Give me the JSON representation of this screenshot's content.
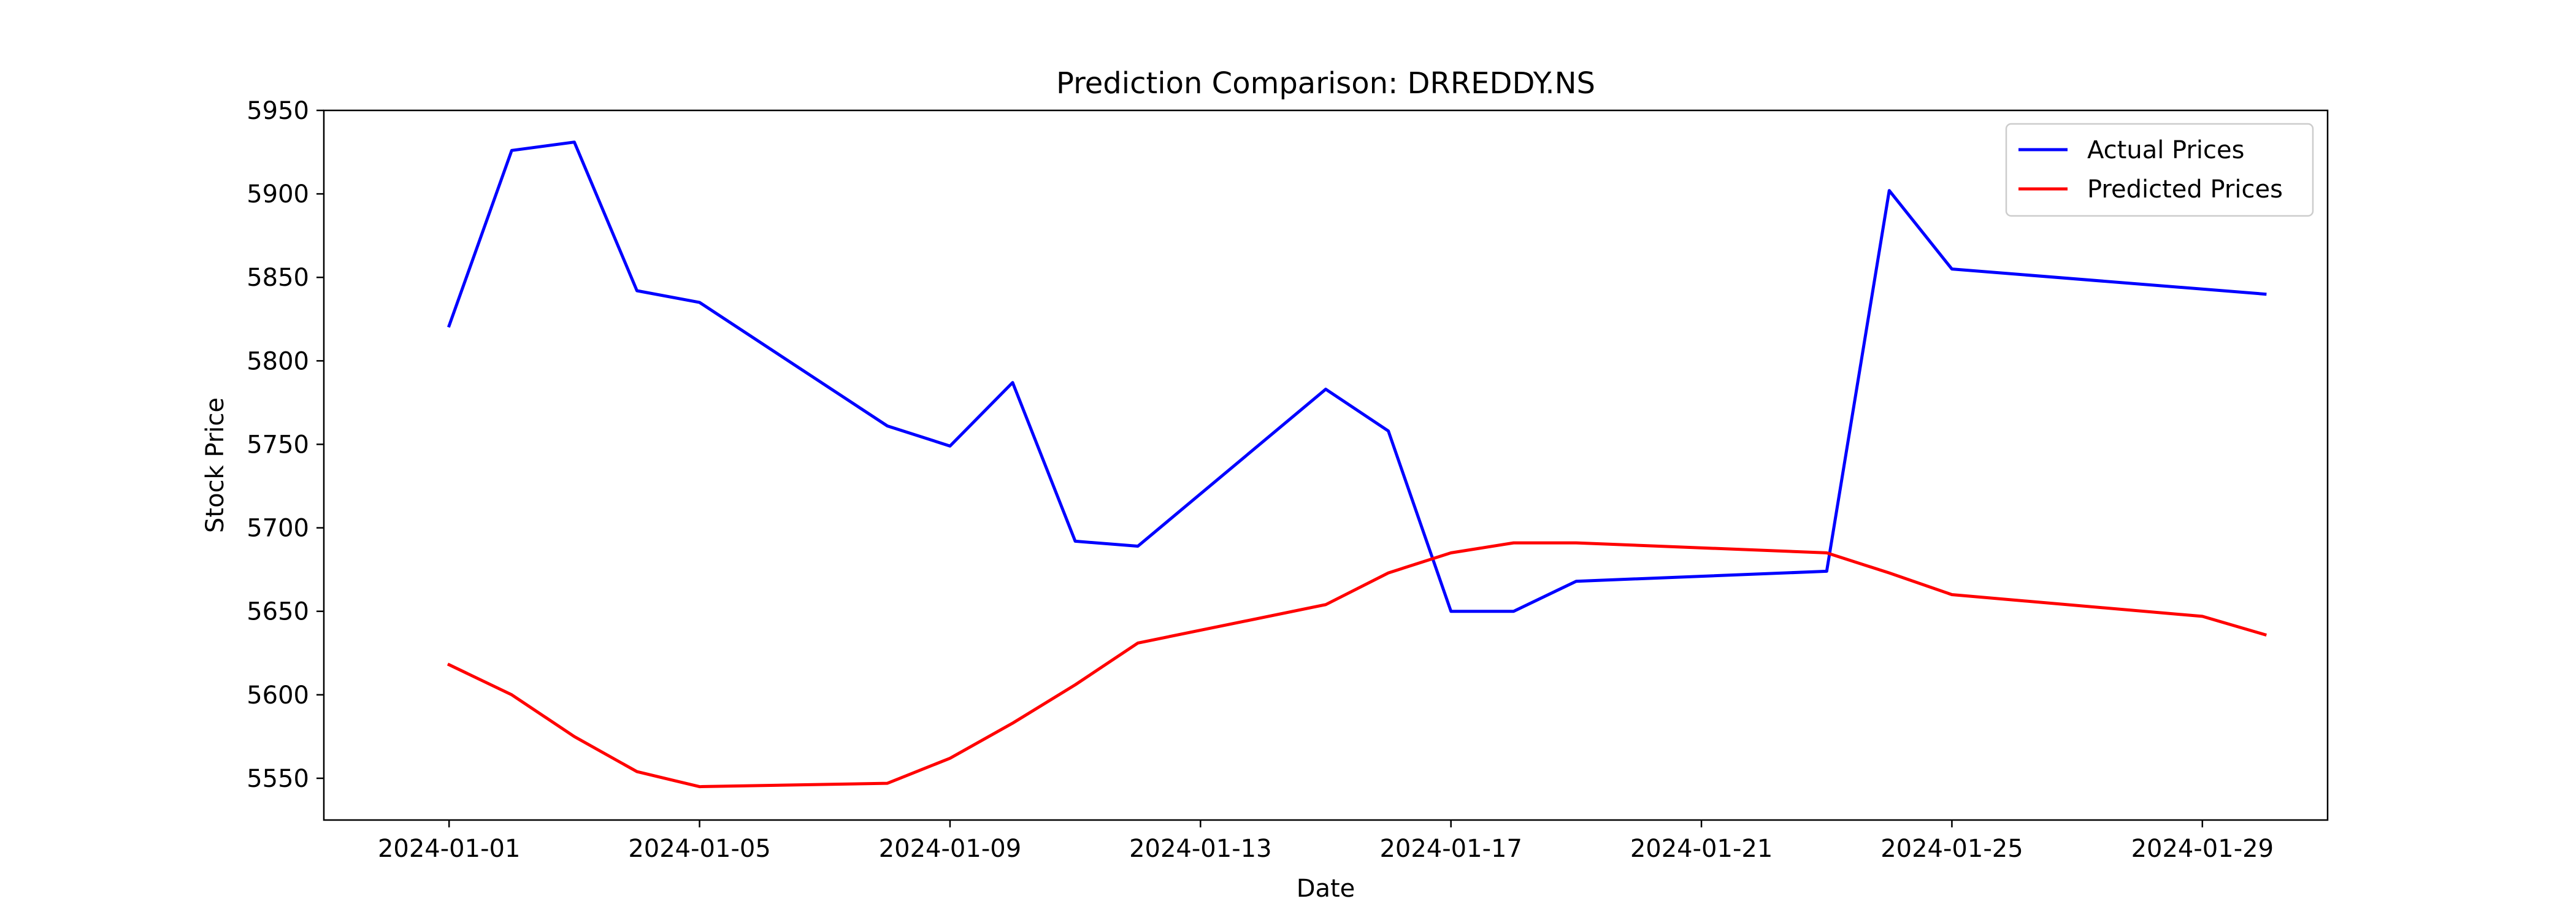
{
  "chart_data": {
    "type": "line",
    "title": "Prediction Comparison: DRREDDY.NS",
    "xlabel": "Date",
    "ylabel": "Stock Price",
    "ylim": [
      5525,
      5950
    ],
    "xlim": [
      "2023-12-30",
      "2024-01-31"
    ],
    "x_ticks": [
      "2024-01-01",
      "2024-01-05",
      "2024-01-09",
      "2024-01-13",
      "2024-01-17",
      "2024-01-21",
      "2024-01-25",
      "2024-01-29"
    ],
    "y_ticks": [
      5550,
      5600,
      5650,
      5700,
      5750,
      5800,
      5850,
      5900,
      5950
    ],
    "grid": false,
    "legend_position": "top-right",
    "series": [
      {
        "name": "Actual Prices",
        "color": "#0000ff",
        "points": [
          {
            "x": "2024-01-01",
            "y": 5821
          },
          {
            "x": "2024-01-02",
            "y": 5926
          },
          {
            "x": "2024-01-03",
            "y": 5931
          },
          {
            "x": "2024-01-04",
            "y": 5842
          },
          {
            "x": "2024-01-05",
            "y": 5835
          },
          {
            "x": "2024-01-08",
            "y": 5761
          },
          {
            "x": "2024-01-09",
            "y": 5749
          },
          {
            "x": "2024-01-10",
            "y": 5787
          },
          {
            "x": "2024-01-11",
            "y": 5692
          },
          {
            "x": "2024-01-12",
            "y": 5689
          },
          {
            "x": "2024-01-15",
            "y": 5783
          },
          {
            "x": "2024-01-16",
            "y": 5758
          },
          {
            "x": "2024-01-17",
            "y": 5650
          },
          {
            "x": "2024-01-18",
            "y": 5650
          },
          {
            "x": "2024-01-19",
            "y": 5668
          },
          {
            "x": "2024-01-23",
            "y": 5674
          },
          {
            "x": "2024-01-24",
            "y": 5902
          },
          {
            "x": "2024-01-25",
            "y": 5855
          },
          {
            "x": "2024-01-30",
            "y": 5840
          }
        ]
      },
      {
        "name": "Predicted Prices",
        "color": "#ff0000",
        "points": [
          {
            "x": "2024-01-01",
            "y": 5618
          },
          {
            "x": "2024-01-02",
            "y": 5600
          },
          {
            "x": "2024-01-03",
            "y": 5575
          },
          {
            "x": "2024-01-04",
            "y": 5554
          },
          {
            "x": "2024-01-05",
            "y": 5545
          },
          {
            "x": "2024-01-08",
            "y": 5547
          },
          {
            "x": "2024-01-09",
            "y": 5562
          },
          {
            "x": "2024-01-10",
            "y": 5583
          },
          {
            "x": "2024-01-11",
            "y": 5606
          },
          {
            "x": "2024-01-12",
            "y": 5631
          },
          {
            "x": "2024-01-15",
            "y": 5654
          },
          {
            "x": "2024-01-16",
            "y": 5673
          },
          {
            "x": "2024-01-17",
            "y": 5685
          },
          {
            "x": "2024-01-18",
            "y": 5691
          },
          {
            "x": "2024-01-19",
            "y": 5691
          },
          {
            "x": "2024-01-23",
            "y": 5685
          },
          {
            "x": "2024-01-24",
            "y": 5673
          },
          {
            "x": "2024-01-25",
            "y": 5660
          },
          {
            "x": "2024-01-29",
            "y": 5647
          },
          {
            "x": "2024-01-30",
            "y": 5636
          }
        ]
      }
    ]
  }
}
